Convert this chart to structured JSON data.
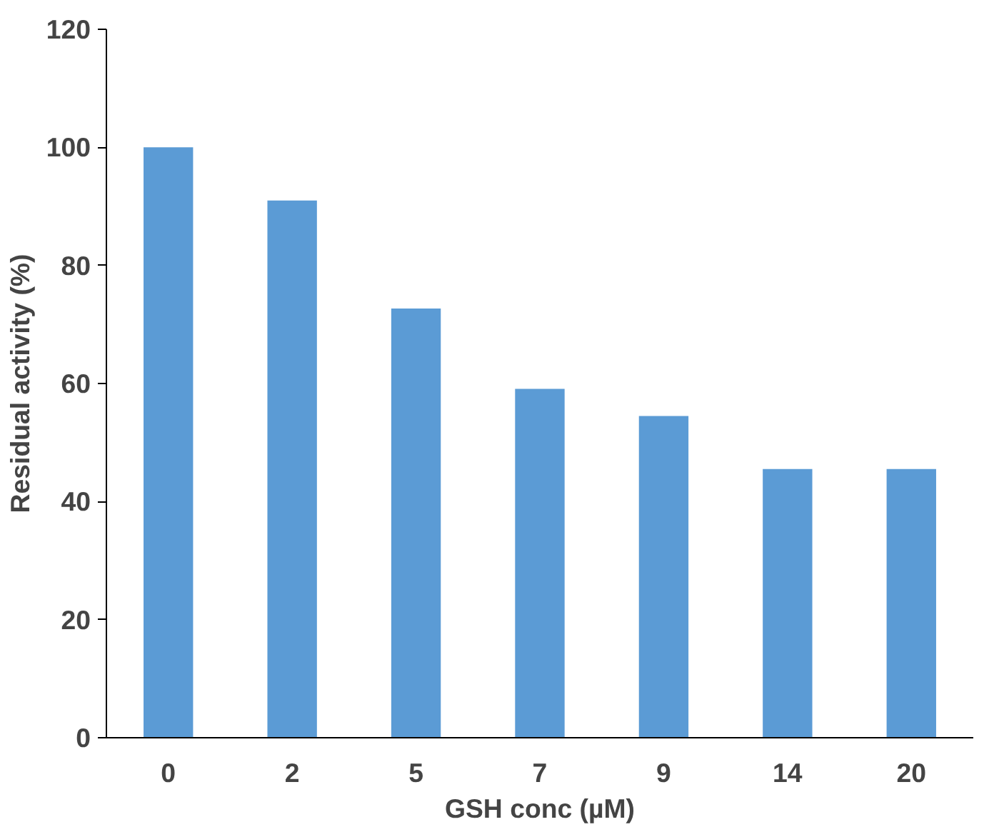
{
  "chart_data": {
    "type": "bar",
    "xlabel": "GSH conc (µM)",
    "ylabel": "Residual activity (%)",
    "categories": [
      "0",
      "2",
      "5",
      "7",
      "9",
      "14",
      "20"
    ],
    "values": [
      100,
      91,
      72.7,
      59.1,
      54.5,
      45.5,
      45.5
    ],
    "color": "#5b9bd5",
    "ylim": [
      0,
      120
    ],
    "yticks": [
      0,
      20,
      40,
      60,
      80,
      100,
      120
    ],
    "grid": false
  }
}
